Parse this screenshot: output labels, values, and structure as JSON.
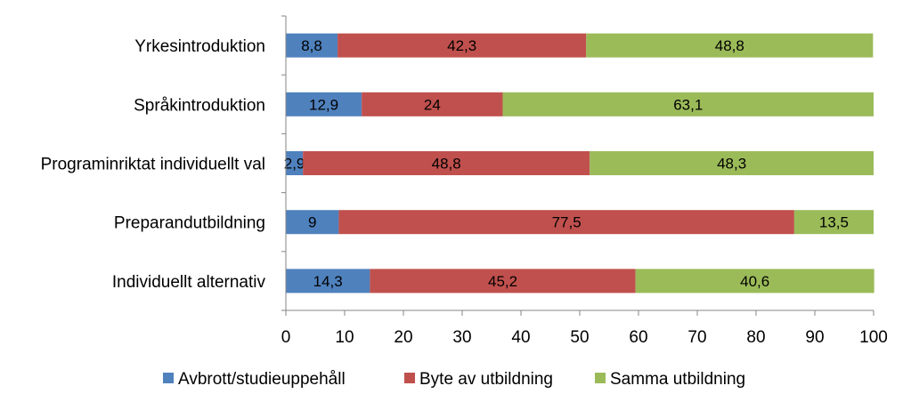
{
  "chart_data": {
    "type": "bar",
    "orientation": "horizontal",
    "stacked": true,
    "title": "",
    "xlabel": "",
    "ylabel": "",
    "xlim": [
      0,
      100
    ],
    "ticks": [
      0,
      10,
      20,
      30,
      40,
      50,
      60,
      70,
      80,
      90,
      100
    ],
    "categories": [
      "Yrkesintroduktion",
      "Språkintroduktion",
      "Programinriktat individuellt val",
      "Preparandutbildning",
      "Individuellt alternativ"
    ],
    "series": [
      {
        "name": "Avbrott/studieuppehåll",
        "color": "#4f81bd",
        "values": [
          8.8,
          12.9,
          2.9,
          9,
          14.3
        ],
        "labels": [
          "8,8",
          "12,9",
          "2,9",
          "9",
          "14,3"
        ]
      },
      {
        "name": "Byte av utbildning",
        "color": "#c0504d",
        "values": [
          42.3,
          24,
          48.8,
          77.5,
          45.2
        ],
        "labels": [
          "42,3",
          "24",
          "48,8",
          "77,5",
          "45,2"
        ]
      },
      {
        "name": "Samma utbildning",
        "color": "#9bbb59",
        "values": [
          48.8,
          63.1,
          48.3,
          13.5,
          40.6
        ],
        "labels": [
          "48,8",
          "63,1",
          "48,3",
          "13,5",
          "40,6"
        ]
      }
    ],
    "legend_position": "bottom",
    "grid": false
  }
}
